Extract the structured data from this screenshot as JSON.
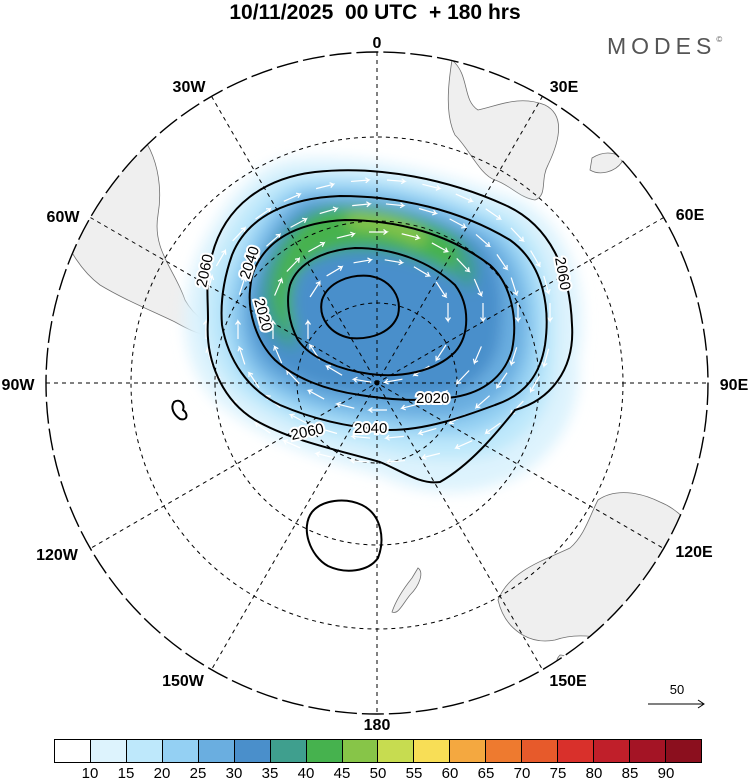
{
  "title": "10/11/2025  00 UTC  + 180 hrs",
  "brand": "MODES",
  "brand_mark": "©",
  "longitude_labels": {
    "lon_0": "0",
    "lon_30e": "30E",
    "lon_60e": "60E",
    "lon_90e": "90E",
    "lon_120e": "120E",
    "lon_150e": "150E",
    "lon_180": "180",
    "lon_150w": "150W",
    "lon_120w": "120W",
    "lon_90w": "90W",
    "lon_60w": "60W",
    "lon_30w": "30W"
  },
  "contour_labels": [
    "2060",
    "2040",
    "2020",
    "2020",
    "2040",
    "2060",
    "2060"
  ],
  "reference_vector": {
    "label": "50",
    "icon": "arrow-right-icon"
  },
  "colorbar": {
    "ticks": [
      "10",
      "15",
      "20",
      "25",
      "30",
      "35",
      "40",
      "45",
      "50",
      "55",
      "60",
      "65",
      "70",
      "75",
      "80",
      "85",
      "90"
    ],
    "colors": [
      "#ffffff",
      "#ddf3fd",
      "#bee8fb",
      "#94d0f3",
      "#6aaee0",
      "#4a8fcb",
      "#3f9f8e",
      "#46b24e",
      "#87c548",
      "#c7dc50",
      "#f8de56",
      "#f4a840",
      "#ee7a2f",
      "#e75a2b",
      "#d9302b",
      "#c01f2a",
      "#a41425",
      "#8b0f1e"
    ]
  },
  "colors": {
    "land": "#efefef",
    "coast": "#707070",
    "grid": "#000000",
    "contour": "#000000",
    "arrow": "#ffffff"
  }
}
